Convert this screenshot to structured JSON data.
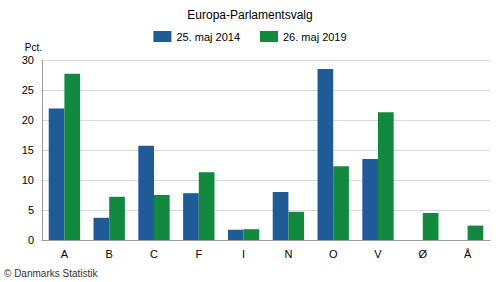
{
  "chart_data": {
    "type": "bar",
    "title": "Europa-Parlamentsvalg",
    "y_label": "Pct.",
    "annotations": [
      "© Danmarks Statistik"
    ],
    "categories": [
      "A",
      "B",
      "C",
      "F",
      "I",
      "N",
      "O",
      "V",
      "Ø",
      "Å"
    ],
    "series": [
      {
        "name": "25. maj 2014",
        "color": "#1f5b96",
        "values": [
          21.9,
          3.7,
          15.7,
          7.8,
          1.7,
          8.0,
          28.5,
          13.5,
          null,
          null
        ]
      },
      {
        "name": "26. maj 2019",
        "color": "#12893e",
        "values": [
          27.7,
          7.2,
          7.5,
          11.3,
          1.8,
          4.7,
          12.3,
          21.3,
          4.5,
          2.4
        ]
      }
    ],
    "ylim": [
      0,
      30
    ],
    "yticks": [
      0,
      5,
      10,
      15,
      20,
      25,
      30
    ],
    "grid": true,
    "legend": "top"
  }
}
